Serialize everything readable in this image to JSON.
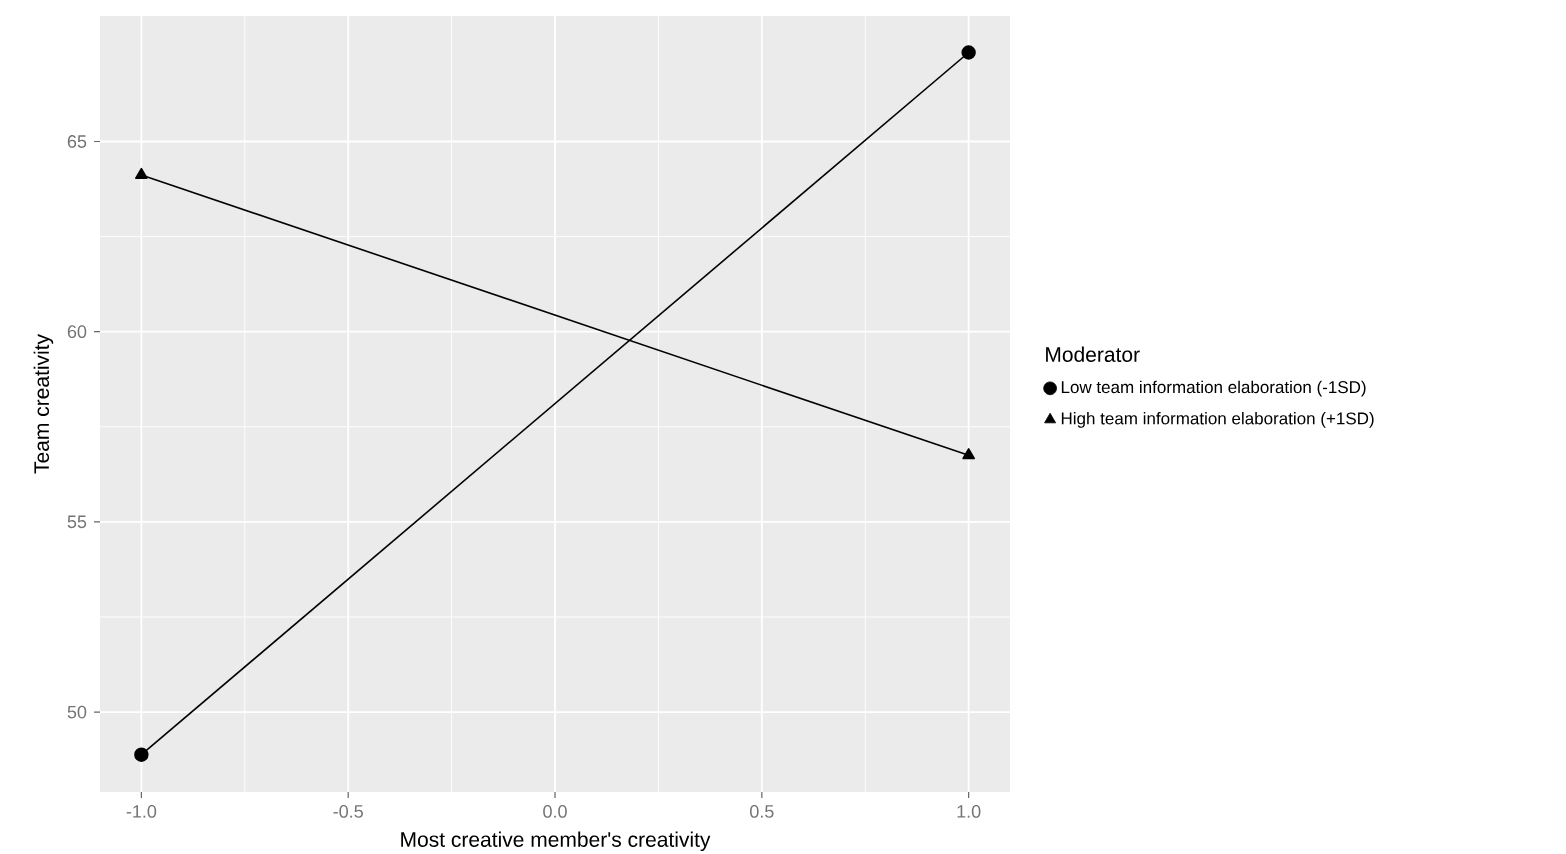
{
  "chart_data": {
    "type": "line",
    "xlabel": "Most creative member's creativity",
    "ylabel": "Team creativity",
    "legend_title": "Moderator",
    "x": [
      -1,
      1
    ],
    "xlim": [
      -1.1,
      1.1
    ],
    "ylim": [
      47.9,
      68.3
    ],
    "xticks": [
      {
        "value": -1,
        "label": "-1.0"
      },
      {
        "value": -0.5,
        "label": "-0.5"
      },
      {
        "value": 0,
        "label": "0.0"
      },
      {
        "value": 0.5,
        "label": "0.5"
      },
      {
        "value": 1,
        "label": "1.0"
      }
    ],
    "yticks": [
      50,
      55,
      60,
      65
    ],
    "grid": true,
    "legend": "right",
    "line_style": "solid",
    "series": [
      {
        "name": "Low team information elaboration (-1SD)",
        "color": "#000000",
        "marker": "circle",
        "values": [
          48.88,
          67.34
        ]
      },
      {
        "name": "High team information elaboration (+1SD)",
        "color": "#000000",
        "marker": "triangle",
        "values": [
          64.12,
          56.75
        ]
      }
    ]
  }
}
